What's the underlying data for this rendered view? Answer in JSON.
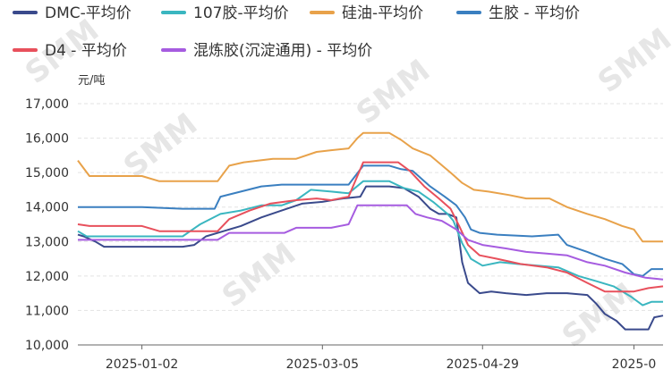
{
  "watermark_text": "SMM",
  "chart_data": {
    "type": "line",
    "title": "",
    "xlabel": "",
    "ylabel": "元/吨",
    "ylim": [
      10000,
      17000
    ],
    "yticks": [
      10000,
      11000,
      12000,
      13000,
      14000,
      15000,
      16000,
      17000
    ],
    "ytick_labels": [
      "10,000",
      "11,000",
      "12,000",
      "13,000",
      "14,000",
      "15,000",
      "16,000",
      "17,000"
    ],
    "xlim": [
      "2024-12-11",
      "2025-06-30"
    ],
    "xticks": [
      {
        "date": "2025-01-02",
        "label": "2025-01-02"
      },
      {
        "date": "2025-03-05",
        "label": "2025-03-05"
      },
      {
        "date": "2025-04-29",
        "label": "2025-04-29"
      },
      {
        "date": "2025-06-20",
        "label": "2025-0"
      }
    ],
    "grid": true,
    "legend_position": "top",
    "series": [
      {
        "name": "DMC-平均价",
        "color": "#3a4a8c",
        "points": [
          [
            "2024-12-11",
            13200
          ],
          [
            "2024-12-13",
            13150
          ],
          [
            "2024-12-17",
            13000
          ],
          [
            "2024-12-20",
            12850
          ],
          [
            "2025-01-08",
            12850
          ],
          [
            "2025-01-16",
            12850
          ],
          [
            "2025-01-20",
            12900
          ],
          [
            "2025-01-24",
            13150
          ],
          [
            "2025-02-05",
            13450
          ],
          [
            "2025-02-12",
            13700
          ],
          [
            "2025-02-19",
            13900
          ],
          [
            "2025-02-26",
            14100
          ],
          [
            "2025-03-05",
            14150
          ],
          [
            "2025-03-12",
            14250
          ],
          [
            "2025-03-18",
            14300
          ],
          [
            "2025-03-20",
            14600
          ],
          [
            "2025-03-28",
            14600
          ],
          [
            "2025-04-02",
            14550
          ],
          [
            "2025-04-07",
            14300
          ],
          [
            "2025-04-11",
            13950
          ],
          [
            "2025-04-14",
            13800
          ],
          [
            "2025-04-17",
            13800
          ],
          [
            "2025-04-20",
            13700
          ],
          [
            "2025-04-22",
            12400
          ],
          [
            "2025-04-24",
            11800
          ],
          [
            "2025-04-28",
            11500
          ],
          [
            "2025-05-02",
            11550
          ],
          [
            "2025-05-07",
            11500
          ],
          [
            "2025-05-14",
            11450
          ],
          [
            "2025-05-21",
            11500
          ],
          [
            "2025-05-28",
            11500
          ],
          [
            "2025-06-04",
            11450
          ],
          [
            "2025-06-07",
            11200
          ],
          [
            "2025-06-10",
            10900
          ],
          [
            "2025-06-14",
            10700
          ],
          [
            "2025-06-17",
            10450
          ],
          [
            "2025-06-21",
            10450
          ],
          [
            "2025-06-25",
            10450
          ],
          [
            "2025-06-27",
            10800
          ],
          [
            "2025-06-30",
            10850
          ]
        ]
      },
      {
        "name": "107胶-平均价",
        "color": "#3ab6c0",
        "points": [
          [
            "2024-12-11",
            13300
          ],
          [
            "2024-12-14",
            13150
          ],
          [
            "2025-01-02",
            13150
          ],
          [
            "2025-01-16",
            13150
          ],
          [
            "2025-01-22",
            13500
          ],
          [
            "2025-01-29",
            13800
          ],
          [
            "2025-02-05",
            13900
          ],
          [
            "2025-02-12",
            14050
          ],
          [
            "2025-02-19",
            14050
          ],
          [
            "2025-02-24",
            14200
          ],
          [
            "2025-03-01",
            14500
          ],
          [
            "2025-03-08",
            14450
          ],
          [
            "2025-03-14",
            14400
          ],
          [
            "2025-03-19",
            14750
          ],
          [
            "2025-03-28",
            14750
          ],
          [
            "2025-04-02",
            14550
          ],
          [
            "2025-04-07",
            14450
          ],
          [
            "2025-04-12",
            14150
          ],
          [
            "2025-04-17",
            13800
          ],
          [
            "2025-04-19",
            13600
          ],
          [
            "2025-04-22",
            12950
          ],
          [
            "2025-04-25",
            12500
          ],
          [
            "2025-04-29",
            12300
          ],
          [
            "2025-05-05",
            12400
          ],
          [
            "2025-05-11",
            12350
          ],
          [
            "2025-05-18",
            12300
          ],
          [
            "2025-05-25",
            12250
          ],
          [
            "2025-06-01",
            12000
          ],
          [
            "2025-06-07",
            11850
          ],
          [
            "2025-06-13",
            11700
          ],
          [
            "2025-06-16",
            11550
          ],
          [
            "2025-06-19",
            11400
          ],
          [
            "2025-06-23",
            11150
          ],
          [
            "2025-06-26",
            11250
          ],
          [
            "2025-06-30",
            11250
          ]
        ]
      },
      {
        "name": "硅油-平均价",
        "color": "#e8a24a",
        "points": [
          [
            "2024-12-11",
            15350
          ],
          [
            "2024-12-15",
            14900
          ],
          [
            "2025-01-02",
            14900
          ],
          [
            "2025-01-08",
            14750
          ],
          [
            "2025-01-28",
            14750
          ],
          [
            "2025-02-01",
            15200
          ],
          [
            "2025-02-06",
            15300
          ],
          [
            "2025-02-16",
            15400
          ],
          [
            "2025-02-24",
            15400
          ],
          [
            "2025-03-03",
            15600
          ],
          [
            "2025-03-08",
            15650
          ],
          [
            "2025-03-14",
            15700
          ],
          [
            "2025-03-17",
            16000
          ],
          [
            "2025-03-19",
            16150
          ],
          [
            "2025-03-28",
            16150
          ],
          [
            "2025-04-01",
            15950
          ],
          [
            "2025-04-05",
            15700
          ],
          [
            "2025-04-11",
            15500
          ],
          [
            "2025-04-18",
            15000
          ],
          [
            "2025-04-22",
            14700
          ],
          [
            "2025-04-26",
            14500
          ],
          [
            "2025-05-01",
            14450
          ],
          [
            "2025-05-08",
            14350
          ],
          [
            "2025-05-14",
            14250
          ],
          [
            "2025-05-22",
            14250
          ],
          [
            "2025-05-28",
            14000
          ],
          [
            "2025-06-04",
            13800
          ],
          [
            "2025-06-10",
            13650
          ],
          [
            "2025-06-16",
            13450
          ],
          [
            "2025-06-20",
            13350
          ],
          [
            "2025-06-23",
            13000
          ],
          [
            "2025-06-30",
            13000
          ]
        ]
      },
      {
        "name": "生胶 - 平均价",
        "color": "#3a7fc0",
        "points": [
          [
            "2024-12-11",
            14000
          ],
          [
            "2025-01-02",
            14000
          ],
          [
            "2025-01-16",
            13950
          ],
          [
            "2025-01-27",
            13950
          ],
          [
            "2025-01-29",
            14300
          ],
          [
            "2025-02-05",
            14450
          ],
          [
            "2025-02-12",
            14600
          ],
          [
            "2025-02-19",
            14650
          ],
          [
            "2025-03-08",
            14650
          ],
          [
            "2025-03-14",
            14650
          ],
          [
            "2025-03-19",
            15200
          ],
          [
            "2025-03-28",
            15200
          ],
          [
            "2025-04-01",
            15100
          ],
          [
            "2025-04-05",
            15050
          ],
          [
            "2025-04-11",
            14600
          ],
          [
            "2025-04-16",
            14300
          ],
          [
            "2025-04-20",
            14050
          ],
          [
            "2025-04-23",
            13700
          ],
          [
            "2025-04-25",
            13350
          ],
          [
            "2025-04-28",
            13250
          ],
          [
            "2025-05-04",
            13200
          ],
          [
            "2025-05-16",
            13150
          ],
          [
            "2025-05-25",
            13200
          ],
          [
            "2025-05-28",
            12900
          ],
          [
            "2025-06-04",
            12700
          ],
          [
            "2025-06-10",
            12500
          ],
          [
            "2025-06-16",
            12350
          ],
          [
            "2025-06-20",
            12050
          ],
          [
            "2025-06-23",
            12000
          ],
          [
            "2025-06-26",
            12200
          ],
          [
            "2025-06-30",
            12200
          ]
        ]
      },
      {
        "name": "D4 - 平均价",
        "color": "#e8505c",
        "points": [
          [
            "2024-12-11",
            13500
          ],
          [
            "2024-12-15",
            13450
          ],
          [
            "2025-01-02",
            13450
          ],
          [
            "2025-01-08",
            13300
          ],
          [
            "2025-01-28",
            13300
          ],
          [
            "2025-02-01",
            13650
          ],
          [
            "2025-02-08",
            13900
          ],
          [
            "2025-02-15",
            14100
          ],
          [
            "2025-02-24",
            14200
          ],
          [
            "2025-03-03",
            14250
          ],
          [
            "2025-03-08",
            14200
          ],
          [
            "2025-03-14",
            14300
          ],
          [
            "2025-03-19",
            15300
          ],
          [
            "2025-03-31",
            15300
          ],
          [
            "2025-04-04",
            15050
          ],
          [
            "2025-04-09",
            14600
          ],
          [
            "2025-04-14",
            14250
          ],
          [
            "2025-04-18",
            13950
          ],
          [
            "2025-04-21",
            13450
          ],
          [
            "2025-04-24",
            12900
          ],
          [
            "2025-04-28",
            12600
          ],
          [
            "2025-05-04",
            12500
          ],
          [
            "2025-05-12",
            12350
          ],
          [
            "2025-05-21",
            12250
          ],
          [
            "2025-05-28",
            12100
          ],
          [
            "2025-06-04",
            11800
          ],
          [
            "2025-06-10",
            11550
          ],
          [
            "2025-06-20",
            11550
          ],
          [
            "2025-06-25",
            11650
          ],
          [
            "2025-06-30",
            11700
          ]
        ]
      },
      {
        "name": "混炼胶(沉淀通用) - 平均价",
        "color": "#a65ce0",
        "points": [
          [
            "2024-12-11",
            13050
          ],
          [
            "2025-01-02",
            13050
          ],
          [
            "2025-01-16",
            13050
          ],
          [
            "2025-01-28",
            13050
          ],
          [
            "2025-02-01",
            13250
          ],
          [
            "2025-02-20",
            13250
          ],
          [
            "2025-02-24",
            13400
          ],
          [
            "2025-03-08",
            13400
          ],
          [
            "2025-03-14",
            13500
          ],
          [
            "2025-03-17",
            14050
          ],
          [
            "2025-04-03",
            14050
          ],
          [
            "2025-04-06",
            13800
          ],
          [
            "2025-04-10",
            13700
          ],
          [
            "2025-04-15",
            13600
          ],
          [
            "2025-04-20",
            13350
          ],
          [
            "2025-04-24",
            13050
          ],
          [
            "2025-04-29",
            12900
          ],
          [
            "2025-05-07",
            12800
          ],
          [
            "2025-05-14",
            12700
          ],
          [
            "2025-05-21",
            12650
          ],
          [
            "2025-05-28",
            12600
          ],
          [
            "2025-06-04",
            12400
          ],
          [
            "2025-06-10",
            12300
          ],
          [
            "2025-06-17",
            12100
          ],
          [
            "2025-06-24",
            11950
          ],
          [
            "2025-06-30",
            11900
          ]
        ]
      }
    ]
  }
}
